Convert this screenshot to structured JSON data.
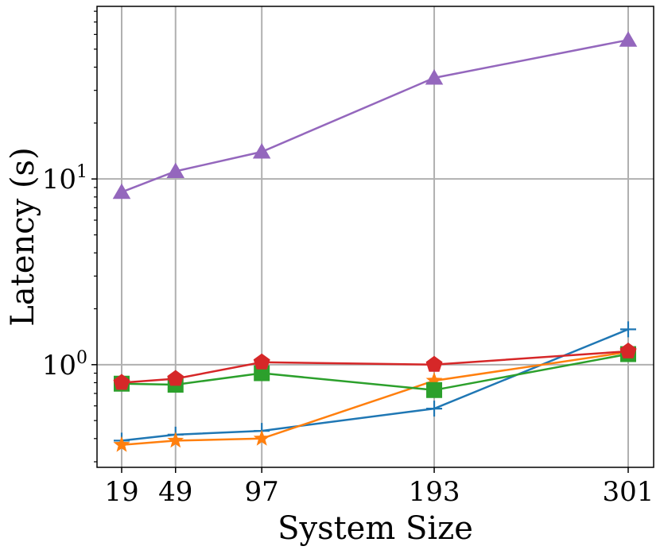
{
  "chart_data": {
    "type": "line",
    "title": "",
    "xlabel": "System Size",
    "ylabel": "Latency (s)",
    "x": [
      19,
      49,
      97,
      193,
      301
    ],
    "x_tick_labels": [
      "19",
      "49",
      "97",
      "193",
      "301"
    ],
    "ylim": [
      0.28,
      85
    ],
    "yscale": "log",
    "y_major_ticks": [
      {
        "value": 1,
        "base": "10",
        "exp": "0"
      },
      {
        "value": 10,
        "base": "10",
        "exp": "1"
      }
    ],
    "grid": true,
    "legend": "none",
    "series": [
      {
        "name": "blue",
        "color": "#1f77b4",
        "marker": "plus",
        "values": [
          0.39,
          0.42,
          0.44,
          0.58,
          1.55
        ]
      },
      {
        "name": "orange",
        "color": "#ff7f0e",
        "marker": "star",
        "values": [
          0.37,
          0.39,
          0.4,
          0.82,
          1.17
        ]
      },
      {
        "name": "green",
        "color": "#2ca02c",
        "marker": "square",
        "values": [
          0.79,
          0.78,
          0.9,
          0.73,
          1.14
        ]
      },
      {
        "name": "red",
        "color": "#d62728",
        "marker": "pentagon",
        "values": [
          0.8,
          0.84,
          1.03,
          1.0,
          1.18
        ]
      },
      {
        "name": "purple",
        "color": "#9467bd",
        "marker": "triangle",
        "values": [
          8.5,
          11.0,
          14.0,
          35.0,
          56.0
        ]
      }
    ]
  }
}
